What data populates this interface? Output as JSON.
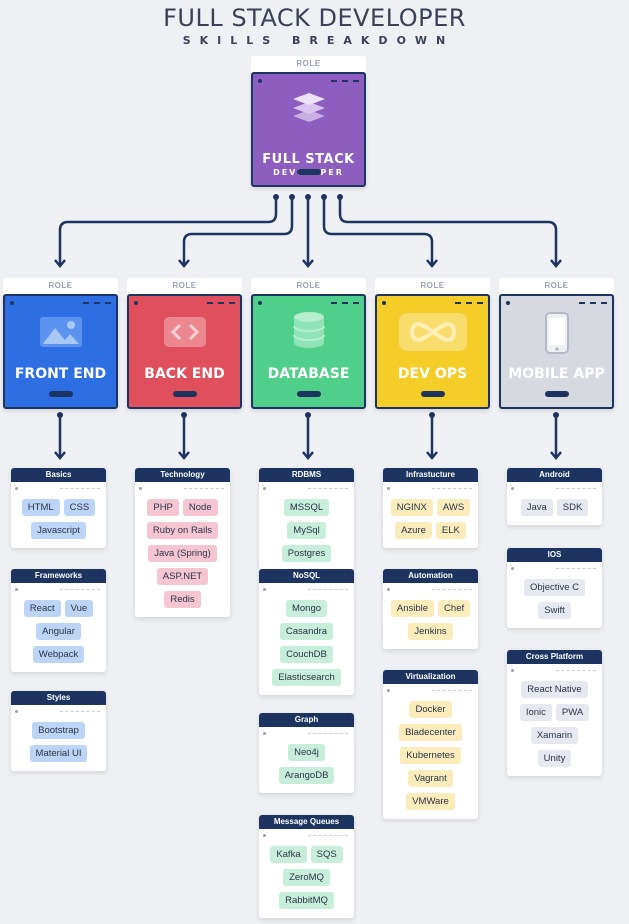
{
  "header": {
    "title": "FULL STACK DEVELOPER",
    "subtitle": "SKILLS BREAKDOWN"
  },
  "colors": {
    "navy": "#1d3461",
    "purple": "#8d5dbf",
    "blue": "#2d6ee3",
    "red": "#df4f5c",
    "green": "#4fcf8a",
    "yellow": "#f5cd28",
    "gray": "#d6d9e0"
  },
  "main": {
    "tag": "ROLE",
    "title_line1": "FULL STACK",
    "title_line2": "DEVELOPER",
    "icon": "layers-icon"
  },
  "roles": [
    {
      "tag": "ROLE",
      "label": "FRONT END",
      "icon": "image-icon"
    },
    {
      "tag": "ROLE",
      "label": "BACK END",
      "icon": "code-icon"
    },
    {
      "tag": "ROLE",
      "label": "DATABASE",
      "icon": "database-icon"
    },
    {
      "tag": "ROLE",
      "label": "DEV OPS",
      "icon": "infinity-icon"
    },
    {
      "tag": "ROLE",
      "label": "MOBILE APP",
      "icon": "smartphone-icon"
    }
  ],
  "columns": [
    {
      "chip_color": "#bcd4f5",
      "groups": [
        {
          "name": "Basics",
          "items": [
            "HTML",
            "CSS",
            "Javascript"
          ]
        },
        {
          "name": "Frameworks",
          "items": [
            "React",
            "Vue",
            "Angular",
            "Webpack"
          ]
        },
        {
          "name": "Styles",
          "items": [
            "Bootstrap",
            "Material UI"
          ]
        }
      ]
    },
    {
      "chip_color": "#f5c6d2",
      "groups": [
        {
          "name": "Technology",
          "items": [
            "PHP",
            "Node",
            "Ruby on Rails",
            "Java (Spring)",
            "ASP.NET",
            "Redis"
          ]
        }
      ]
    },
    {
      "chip_color": "#c6eedb",
      "groups": [
        {
          "name": "RDBMS",
          "items": [
            "MSSQL",
            "MySql",
            "Postgres"
          ]
        },
        {
          "name": "NoSQL",
          "items": [
            "Mongo",
            "Casandra",
            "CouchDB",
            "Elasticsearch"
          ]
        },
        {
          "name": "Graph",
          "items": [
            "Neo4j",
            "ArangoDB"
          ]
        },
        {
          "name": "Message Queues",
          "items": [
            "Kafka",
            "SQS",
            "ZeroMQ",
            "RabbitMQ"
          ]
        }
      ]
    },
    {
      "chip_color": "#fbecbb",
      "groups": [
        {
          "name": "Infrastucture",
          "items": [
            "NGINX",
            "AWS",
            "Azure",
            "ELK"
          ]
        },
        {
          "name": "Automation",
          "items": [
            "Ansible",
            "Chef",
            "Jenkins"
          ]
        },
        {
          "name": "Virtualization",
          "items": [
            "Docker",
            "Bladecenter",
            "Kubernetes",
            "Vagrant",
            "VMWare"
          ]
        }
      ]
    },
    {
      "chip_color": "#e6e9ef",
      "groups": [
        {
          "name": "Android",
          "items": [
            "Java",
            "SDK"
          ]
        },
        {
          "name": "IOS",
          "items": [
            "Objective C",
            "Swift"
          ]
        },
        {
          "name": "Cross Platform",
          "items": [
            "React Native",
            "Ionic",
            "PWA",
            "Xamarin",
            "Unity"
          ]
        }
      ]
    }
  ]
}
